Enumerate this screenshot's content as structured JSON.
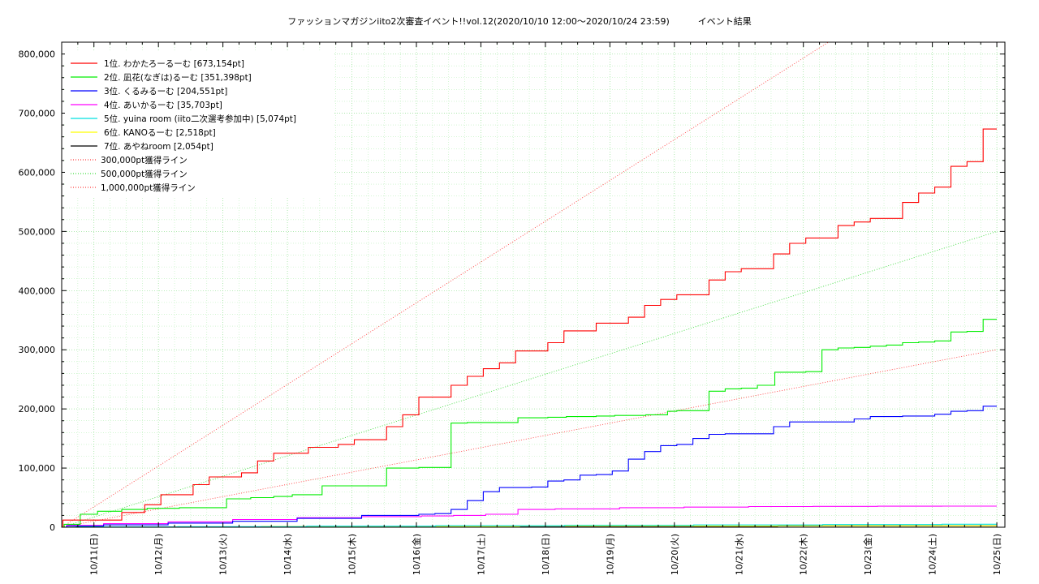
{
  "chart_data": {
    "type": "line",
    "title": "ファッションマガジンiito2次審査イベント!!vol.12(2020/10/10 12:00〜2020/10/24 23:59)          イベント結果",
    "xlabel": "",
    "ylabel": "",
    "ylim": [
      0,
      820000
    ],
    "xlim": [
      "2020-10-10 12:00",
      "2020-10-25 03:00"
    ],
    "grid": true,
    "legend_position": "top-left",
    "y_ticks": [
      "0",
      "100,000",
      "200,000",
      "300,000",
      "400,000",
      "500,000",
      "600,000",
      "700,000",
      "800,000"
    ],
    "x_ticks": [
      "10/11(日)",
      "10/12(月)",
      "10/13(火)",
      "10/14(水)",
      "10/15(木)",
      "10/16(金)",
      "10/17(土)",
      "10/18(日)",
      "10/19(月)",
      "10/20(火)",
      "10/21(水)",
      "10/22(木)",
      "10/23(金)",
      "10/24(土)",
      "10/25(日)"
    ],
    "series": [
      {
        "name": "1位. わかたろーるーむ [673,154pt]",
        "color": "#ff0000",
        "style": "solid",
        "x": [
          "2020-10-10 12:00",
          "2020-10-10 15:00",
          "2020-10-11 09:00",
          "2020-10-11 18:00",
          "2020-10-12 00:00",
          "2020-10-12 06:00",
          "2020-10-12 12:00",
          "2020-10-12 18:00",
          "2020-10-13 00:00",
          "2020-10-13 06:00",
          "2020-10-13 12:00",
          "2020-10-13 18:00",
          "2020-10-14 00:00",
          "2020-10-14 06:00",
          "2020-10-14 18:00",
          "2020-10-15 00:00",
          "2020-10-15 06:00",
          "2020-10-15 12:00",
          "2020-10-15 18:00",
          "2020-10-16 00:00",
          "2020-10-16 06:00",
          "2020-10-16 12:00",
          "2020-10-16 18:00",
          "2020-10-17 00:00",
          "2020-10-17 06:00",
          "2020-10-17 12:00",
          "2020-10-17 18:00",
          "2020-10-18 00:00",
          "2020-10-18 06:00",
          "2020-10-18 12:00",
          "2020-10-18 18:00",
          "2020-10-19 00:00",
          "2020-10-19 06:00",
          "2020-10-19 12:00",
          "2020-10-19 18:00",
          "2020-10-20 00:00",
          "2020-10-20 06:00",
          "2020-10-20 12:00",
          "2020-10-20 18:00",
          "2020-10-21 00:00",
          "2020-10-21 06:00",
          "2020-10-21 12:00",
          "2020-10-21 18:00",
          "2020-10-22 00:00",
          "2020-10-22 06:00",
          "2020-10-22 12:00",
          "2020-10-22 18:00",
          "2020-10-23 00:00",
          "2020-10-23 06:00",
          "2020-10-23 12:00",
          "2020-10-23 18:00",
          "2020-10-24 00:00",
          "2020-10-24 06:00",
          "2020-10-24 12:00",
          "2020-10-24 18:00",
          "2020-10-24 23:59"
        ],
        "y": [
          0,
          12000,
          12000,
          25000,
          38000,
          55000,
          55000,
          72000,
          85000,
          85000,
          92000,
          112000,
          125000,
          125000,
          135000,
          140000,
          148000,
          148000,
          170000,
          190000,
          220000,
          220000,
          240000,
          255000,
          268000,
          278000,
          298000,
          298000,
          312000,
          332000,
          332000,
          345000,
          345000,
          355000,
          375000,
          385000,
          393000,
          393000,
          418000,
          432000,
          437000,
          437000,
          462000,
          480000,
          489000,
          489000,
          510000,
          516000,
          522000,
          522000,
          549000,
          565000,
          575000,
          610000,
          618000,
          673154
        ]
      },
      {
        "name": "2位. 凪花(なぎは)るーむ [351,398pt]",
        "color": "#00ee00",
        "style": "solid",
        "x": [
          "2020-10-10 12:00",
          "2020-10-10 18:00",
          "2020-10-11 00:00",
          "2020-10-11 09:00",
          "2020-10-11 18:00",
          "2020-10-12 06:00",
          "2020-10-12 18:00",
          "2020-10-13 00:00",
          "2020-10-13 09:00",
          "2020-10-13 18:00",
          "2020-10-14 00:00",
          "2020-10-14 12:00",
          "2020-10-14 18:00",
          "2020-10-15 00:00",
          "2020-10-15 06:00",
          "2020-10-15 12:00",
          "2020-10-15 18:00",
          "2020-10-16 00:00",
          "2020-10-16 06:00",
          "2020-10-16 12:00",
          "2020-10-16 18:00",
          "2020-10-17 00:00",
          "2020-10-17 12:00",
          "2020-10-18 00:00",
          "2020-10-18 06:00",
          "2020-10-18 18:00",
          "2020-10-19 00:00",
          "2020-10-19 12:00",
          "2020-10-19 21:00",
          "2020-10-20 00:00",
          "2020-10-20 06:00",
          "2020-10-20 12:00",
          "2020-10-20 18:00",
          "2020-10-21 00:00",
          "2020-10-21 06:00",
          "2020-10-21 12:00",
          "2020-10-21 21:00",
          "2020-10-22 00:00",
          "2020-10-22 06:00",
          "2020-10-22 12:00",
          "2020-10-22 18:00",
          "2020-10-23 00:00",
          "2020-10-23 06:00",
          "2020-10-23 12:00",
          "2020-10-23 18:00",
          "2020-10-24 00:00",
          "2020-10-24 06:00",
          "2020-10-24 12:00",
          "2020-10-24 18:00",
          "2020-10-24 23:59"
        ],
        "y": [
          0,
          5000,
          22000,
          27000,
          30000,
          32000,
          33000,
          33000,
          48000,
          50000,
          52000,
          55000,
          70000,
          70000,
          70000,
          70000,
          100000,
          100000,
          101000,
          101000,
          176000,
          177000,
          177000,
          185000,
          186000,
          187000,
          188000,
          189000,
          190000,
          196000,
          197000,
          197000,
          230000,
          234000,
          235000,
          240000,
          262000,
          262000,
          263000,
          300000,
          303000,
          304000,
          306000,
          308000,
          312000,
          313000,
          315000,
          330000,
          331000,
          351398
        ]
      },
      {
        "name": "3位. くるみるーむ [204,551pt]",
        "color": "#0000ff",
        "style": "solid",
        "x": [
          "2020-10-10 12:00",
          "2020-10-11 00:00",
          "2020-10-12 00:00",
          "2020-10-13 00:00",
          "2020-10-14 00:00",
          "2020-10-15 00:00",
          "2020-10-16 00:00",
          "2020-10-16 06:00",
          "2020-10-16 12:00",
          "2020-10-16 18:00",
          "2020-10-17 00:00",
          "2020-10-17 06:00",
          "2020-10-17 12:00",
          "2020-10-17 18:00",
          "2020-10-18 00:00",
          "2020-10-18 06:00",
          "2020-10-18 12:00",
          "2020-10-18 18:00",
          "2020-10-19 00:00",
          "2020-10-19 06:00",
          "2020-10-19 12:00",
          "2020-10-19 18:00",
          "2020-10-20 00:00",
          "2020-10-20 06:00",
          "2020-10-20 12:00",
          "2020-10-20 18:00",
          "2020-10-21 00:00",
          "2020-10-21 06:00",
          "2020-10-21 12:00",
          "2020-10-21 18:00",
          "2020-10-22 00:00",
          "2020-10-22 06:00",
          "2020-10-22 12:00",
          "2020-10-22 18:00",
          "2020-10-23 00:00",
          "2020-10-23 06:00",
          "2020-10-23 12:00",
          "2020-10-23 18:00",
          "2020-10-24 00:00",
          "2020-10-24 06:00",
          "2020-10-24 12:00",
          "2020-10-24 18:00",
          "2020-10-24 23:59"
        ],
        "y": [
          0,
          2000,
          4000,
          7000,
          10000,
          15000,
          20000,
          22000,
          23000,
          30000,
          45000,
          60000,
          67000,
          67000,
          68000,
          78000,
          80000,
          88000,
          89000,
          95000,
          115000,
          128000,
          138000,
          140000,
          150000,
          157000,
          158000,
          158000,
          158000,
          170000,
          178000,
          178000,
          178000,
          178000,
          183000,
          187000,
          187000,
          188000,
          188000,
          191000,
          196000,
          197000,
          204551
        ]
      },
      {
        "name": "4位. あいかるーむ [35,703pt]",
        "color": "#ff00ff",
        "style": "solid",
        "x": [
          "2020-10-10 12:00",
          "2020-10-11 00:00",
          "2020-10-12 00:00",
          "2020-10-13 00:00",
          "2020-10-14 00:00",
          "2020-10-15 00:00",
          "2020-10-16 00:00",
          "2020-10-16 12:00",
          "2020-10-17 00:00",
          "2020-10-17 12:00",
          "2020-10-18 00:00",
          "2020-10-19 00:00",
          "2020-10-20 00:00",
          "2020-10-21 00:00",
          "2020-10-22 00:00",
          "2020-10-23 00:00",
          "2020-10-24 00:00",
          "2020-10-24 23:59"
        ],
        "y": [
          0,
          3000,
          6000,
          9000,
          13000,
          16000,
          18000,
          19000,
          20000,
          22000,
          30000,
          31000,
          33000,
          34000,
          35000,
          35200,
          35500,
          35703
        ]
      },
      {
        "name": "5位. yuina room (iito二次選考参加中) [5,074pt]",
        "color": "#00e0e0",
        "style": "solid",
        "x": [
          "2020-10-10 12:00",
          "2020-10-12 00:00",
          "2020-10-14 00:00",
          "2020-10-16 00:00",
          "2020-10-18 00:00",
          "2020-10-20 00:00",
          "2020-10-22 00:00",
          "2020-10-24 00:00",
          "2020-10-24 23:59"
        ],
        "y": [
          0,
          500,
          1000,
          1800,
          2500,
          3200,
          3800,
          4500,
          5074
        ]
      },
      {
        "name": "6位. KANOるーむ [2,518pt]",
        "color": "#ffff00",
        "style": "solid",
        "x": [
          "2020-10-10 12:00",
          "2020-10-13 00:00",
          "2020-10-17 00:00",
          "2020-10-21 00:00",
          "2020-10-24 23:59"
        ],
        "y": [
          0,
          700,
          1400,
          2000,
          2518
        ]
      },
      {
        "name": "7位. あやねroom [2,054pt]",
        "color": "#000000",
        "style": "solid",
        "x": [
          "2020-10-10 12:00",
          "2020-10-13 00:00",
          "2020-10-17 00:00",
          "2020-10-21 00:00",
          "2020-10-24 23:59"
        ],
        "y": [
          0,
          500,
          1100,
          1600,
          2054
        ]
      },
      {
        "name": "300,000pt獲得ライン",
        "color": "#ff4040",
        "style": "dotted",
        "x": [
          "2020-10-10 12:00",
          "2020-10-24 23:59"
        ],
        "y": [
          0,
          300000
        ]
      },
      {
        "name": "500,000pt獲得ライン",
        "color": "#40dd40",
        "style": "dotted",
        "x": [
          "2020-10-10 12:00",
          "2020-10-24 23:59"
        ],
        "y": [
          0,
          500000
        ]
      },
      {
        "name": "1,000,000pt獲得ライン",
        "color": "#ff4040",
        "style": "dotted",
        "x": [
          "2020-10-10 12:00",
          "2020-10-24 23:59"
        ],
        "y": [
          0,
          1000000
        ]
      }
    ]
  }
}
